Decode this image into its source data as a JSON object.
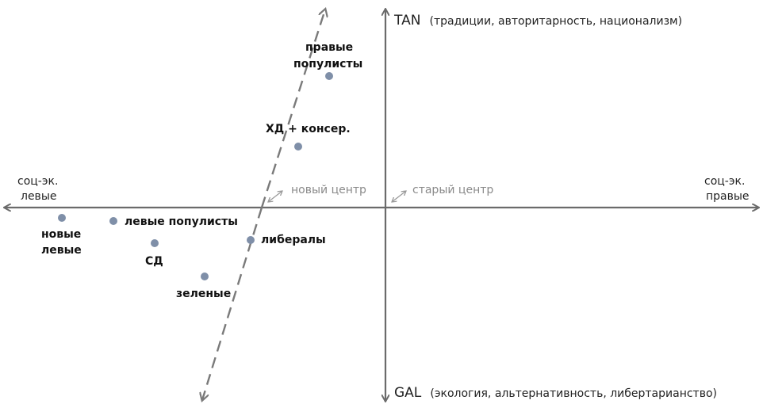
{
  "axes": {
    "left_line1": "соц-эк.",
    "left_line2": "левые",
    "right_line1": "соц-эк.",
    "right_line2": "правые",
    "top_main": "TAN",
    "top_sub": "(традиции, авторитарность, национализм)",
    "bottom_main": "GAL",
    "bottom_sub": "(экология, альтернативность, либертарианство)"
  },
  "centers": {
    "new": "новый центр",
    "old": "старый центр"
  },
  "parties": {
    "right_populists_line1": "правые",
    "right_populists_line2": "популисты",
    "cd_conservatives": "ХД + консер.",
    "left_populists": "левые популисты",
    "new_left_line1": "новые",
    "new_left_line2": "левые",
    "sd": "СД",
    "liberals": "либералы",
    "greens": "зеленые"
  },
  "colors": {
    "axis": "#6b6b6b",
    "dashed_line": "#7a7a7a",
    "point": "#7f8fa8",
    "center_arrow": "#9a9a9a"
  }
}
